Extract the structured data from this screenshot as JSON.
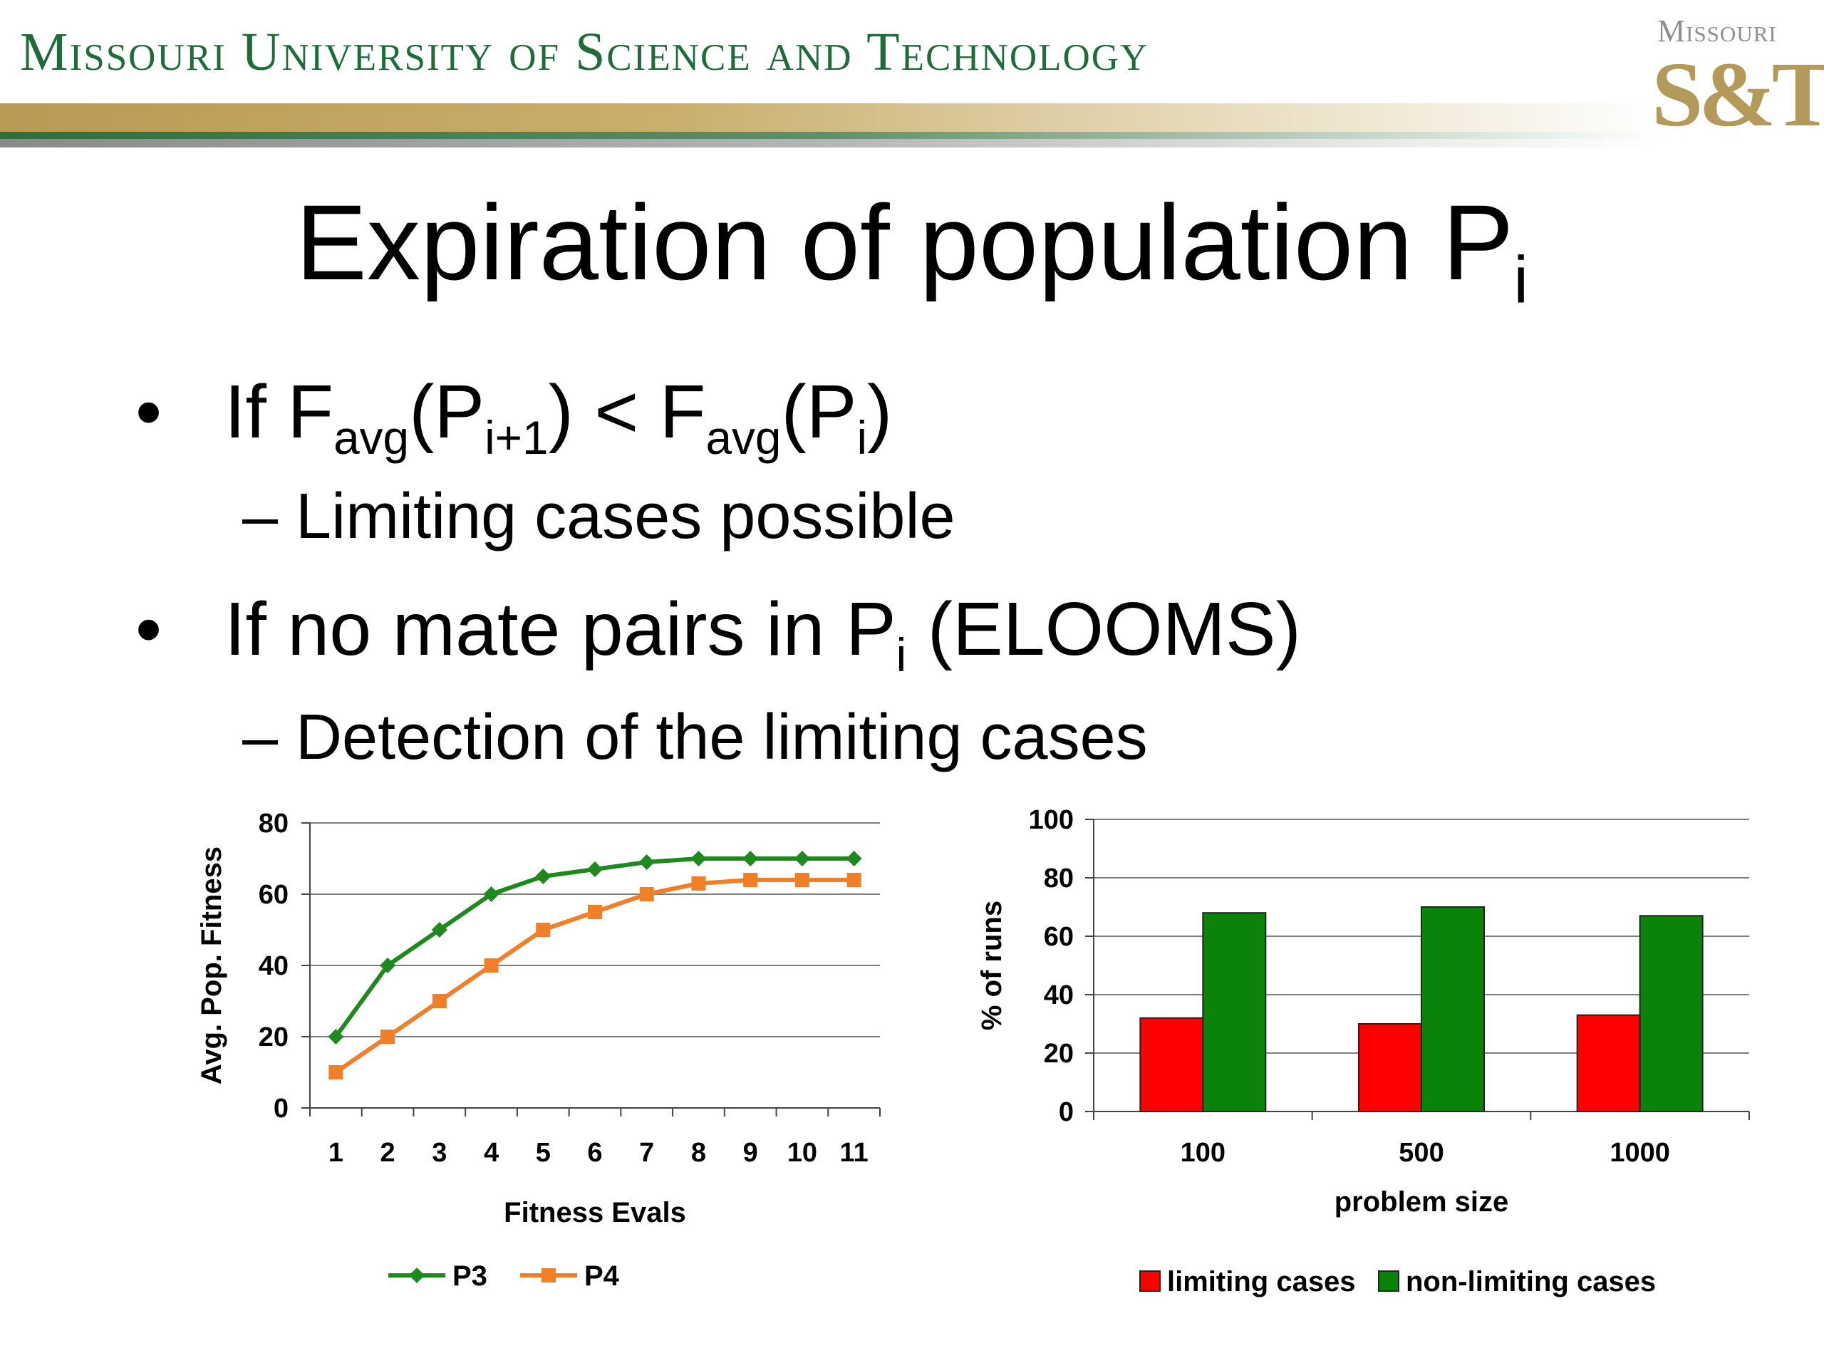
{
  "header": {
    "university": "Missouri University of Science and Technology",
    "logo_top": "Missouri",
    "logo_main": "S&T"
  },
  "slide": {
    "title_main": "Expiration of population P",
    "title_sub": "i",
    "bullet1": {
      "marker": "•",
      "t1": "If F",
      "s1": "avg",
      "t2": "(P",
      "s2": "i+1",
      "t3": ") < F",
      "s3": "avg",
      "t4": "(P",
      "s4": "i",
      "t5": ")"
    },
    "sub1": "– Limiting cases possible",
    "bullet2": {
      "marker": "•",
      "t1": "If no mate pairs in P",
      "s1": "i",
      "t2": " (ELOOMS)"
    },
    "sub2": "– Detection of the limiting cases"
  },
  "colors": {
    "green": "#1e8a1e",
    "orange": "#f07f28",
    "red": "#ff0000",
    "dark_green": "#0b830b",
    "grid": "#7f7f7f"
  },
  "chart_data": [
    {
      "type": "line",
      "title": "",
      "xlabel": "Fitness Evals",
      "ylabel": "Avg. Pop. Fitness",
      "x": [
        1,
        2,
        3,
        4,
        5,
        6,
        7,
        8,
        9,
        10,
        11
      ],
      "ylim": [
        0,
        80
      ],
      "yticks": [
        0,
        20,
        40,
        60,
        80
      ],
      "grid": true,
      "legend": "bottom",
      "series": [
        {
          "name": "P3",
          "color": "#1e8a1e",
          "marker": "diamond",
          "values": [
            20,
            40,
            50,
            60,
            65,
            67,
            69,
            70,
            70,
            70,
            70
          ]
        },
        {
          "name": "P4",
          "color": "#f07f28",
          "marker": "square",
          "values": [
            10,
            20,
            30,
            40,
            50,
            55,
            60,
            63,
            64,
            64,
            64
          ]
        }
      ]
    },
    {
      "type": "bar",
      "title": "",
      "xlabel": "problem size",
      "ylabel": "% of runs",
      "categories": [
        "100",
        "500",
        "1000"
      ],
      "ylim": [
        0,
        100
      ],
      "yticks": [
        0,
        20,
        40,
        60,
        80,
        100
      ],
      "grid": true,
      "legend": "bottom",
      "series": [
        {
          "name": "limiting cases",
          "color": "#ff0000",
          "values": [
            32,
            30,
            33
          ]
        },
        {
          "name": "non-limiting cases",
          "color": "#0b830b",
          "values": [
            68,
            70,
            67
          ]
        }
      ]
    }
  ]
}
